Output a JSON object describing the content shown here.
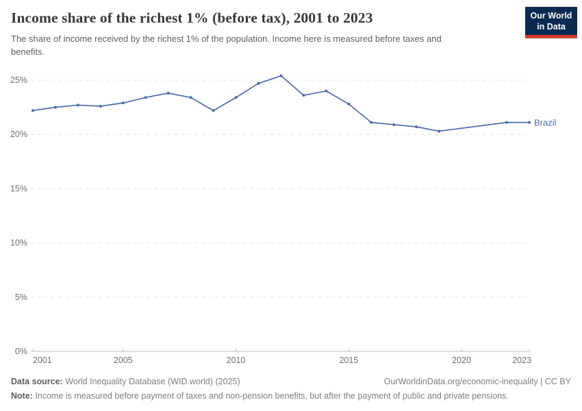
{
  "header": {
    "title": "Income share of the richest 1% (before tax), 2001 to 2023",
    "subtitle": "The share of income received by the richest 1% of the population. Income here is measured before taxes and benefits.",
    "logo": {
      "line1": "Our World",
      "line2": "in Data",
      "bg_color": "#0b2a51",
      "accent_color": "#cf3b32"
    }
  },
  "chart_data": {
    "type": "line",
    "title": "Income share of the richest 1% (before tax), 2001 to 2023",
    "xlabel": "",
    "ylabel": "",
    "xlim": [
      2001,
      2023
    ],
    "ylim": [
      0,
      25
    ],
    "x_ticks": [
      2001,
      2005,
      2010,
      2015,
      2020,
      2023
    ],
    "x_tick_labels": [
      "2001",
      "2005",
      "2010",
      "2015",
      "2020",
      "2023"
    ],
    "y_ticks": [
      0,
      5,
      10,
      15,
      20,
      25
    ],
    "y_tick_labels": [
      "0%",
      "5%",
      "10%",
      "15%",
      "20%",
      "25%"
    ],
    "grid": "horizontal-dashed",
    "legend_position": "end-of-line",
    "colors": {
      "line": "#4c6ba8",
      "gridline": "#e2e2e2",
      "axis": "#c2c2c2"
    },
    "series": [
      {
        "name": "Brazil",
        "color": "#4c6ba8",
        "points": [
          [
            2001,
            22.2
          ],
          [
            2002,
            22.5
          ],
          [
            2003,
            22.7
          ],
          [
            2004,
            22.6
          ],
          [
            2005,
            22.9
          ],
          [
            2006,
            23.4
          ],
          [
            2007,
            23.8
          ],
          [
            2008,
            23.4
          ],
          [
            2009,
            22.2
          ],
          [
            2010,
            23.4
          ],
          [
            2011,
            24.7
          ],
          [
            2012,
            25.4
          ],
          [
            2013,
            23.6
          ],
          [
            2014,
            24.0
          ],
          [
            2015,
            22.8
          ],
          [
            2016,
            21.1
          ],
          [
            2017,
            20.9
          ],
          [
            2018,
            20.7
          ],
          [
            2019,
            20.3
          ],
          [
            2022,
            21.1
          ],
          [
            2023,
            21.1
          ]
        ]
      }
    ]
  },
  "footer": {
    "data_source_label": "Data source:",
    "data_source_value": " World Inequality Database (WID.world) (2025)",
    "attribution": "OurWorldinData.org/economic-inequality | CC BY",
    "note_label": "Note:",
    "note_value": " Income is measured before payment of taxes and non-pension benefits, but after the payment of public and private pensions."
  }
}
